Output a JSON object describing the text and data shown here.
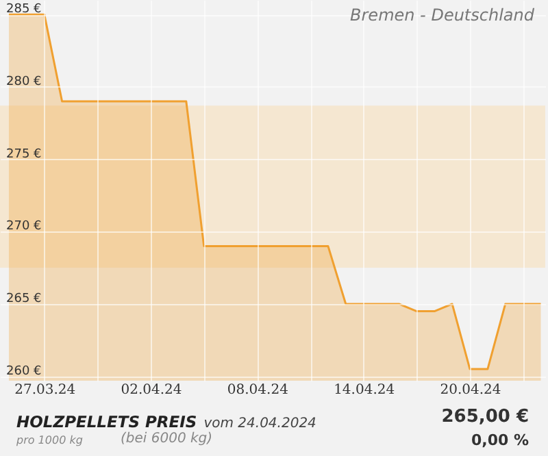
{
  "chart_data": {
    "type": "area",
    "title": "HOLZPELLETS PREIS",
    "subtitle": "vom 24.04.2024",
    "annotations": [
      "Bremen - Deutschland",
      "pro 1000 kg",
      "(bei 6000 kg)",
      "265,00 €",
      "0,00 %"
    ],
    "x": [
      "2024-03-25",
      "2024-03-26",
      "2024-03-27",
      "2024-03-28",
      "2024-03-29",
      "2024-03-30",
      "2024-03-31",
      "2024-04-01",
      "2024-04-02",
      "2024-04-03",
      "2024-04-04",
      "2024-04-05",
      "2024-04-06",
      "2024-04-07",
      "2024-04-08",
      "2024-04-09",
      "2024-04-10",
      "2024-04-11",
      "2024-04-12",
      "2024-04-13",
      "2024-04-14",
      "2024-04-15",
      "2024-04-16",
      "2024-04-17",
      "2024-04-18",
      "2024-04-19",
      "2024-04-20",
      "2024-04-21",
      "2024-04-22",
      "2024-04-23",
      "2024-04-24"
    ],
    "series": [
      {
        "color": "#f0a030",
        "values": [
          285,
          285,
          285,
          279,
          279,
          279,
          279,
          279,
          279,
          279,
          279,
          269,
          269,
          269,
          269,
          269,
          269,
          269,
          269,
          265,
          265,
          265,
          265,
          264.5,
          264.5,
          265,
          260.5,
          260.5,
          265,
          265,
          265
        ]
      }
    ],
    "xlim": [
      "2024-03-24T12:00",
      "2024-04-24T06:00"
    ],
    "xticks": [
      {
        "value": "2024-03-27",
        "label": "27.03.24"
      },
      {
        "value": "2024-03-30",
        "label": null
      },
      {
        "value": "2024-04-02",
        "label": "02.04.24"
      },
      {
        "value": "2024-04-05",
        "label": null
      },
      {
        "value": "2024-04-08",
        "label": "08.04.24"
      },
      {
        "value": "2024-04-11",
        "label": null
      },
      {
        "value": "2024-04-14",
        "label": "14.04.24"
      },
      {
        "value": "2024-04-17",
        "label": null
      },
      {
        "value": "2024-04-20",
        "label": "20.04.24"
      },
      {
        "value": "2024-04-23",
        "label": null
      }
    ],
    "ylim": [
      259.7,
      286
    ],
    "yticks": [
      {
        "value": 260,
        "label": "260 €"
      },
      {
        "value": 265,
        "label": "265 €"
      },
      {
        "value": 270,
        "label": "270 €"
      },
      {
        "value": 275,
        "label": "275 €"
      },
      {
        "value": 280,
        "label": "280 €"
      },
      {
        "value": 285,
        "label": "285 €"
      }
    ],
    "bands": [
      {
        "axis": "y",
        "from": 267.5,
        "to": 278.7,
        "color": "#f5e4c8"
      }
    ],
    "grid": true
  }
}
